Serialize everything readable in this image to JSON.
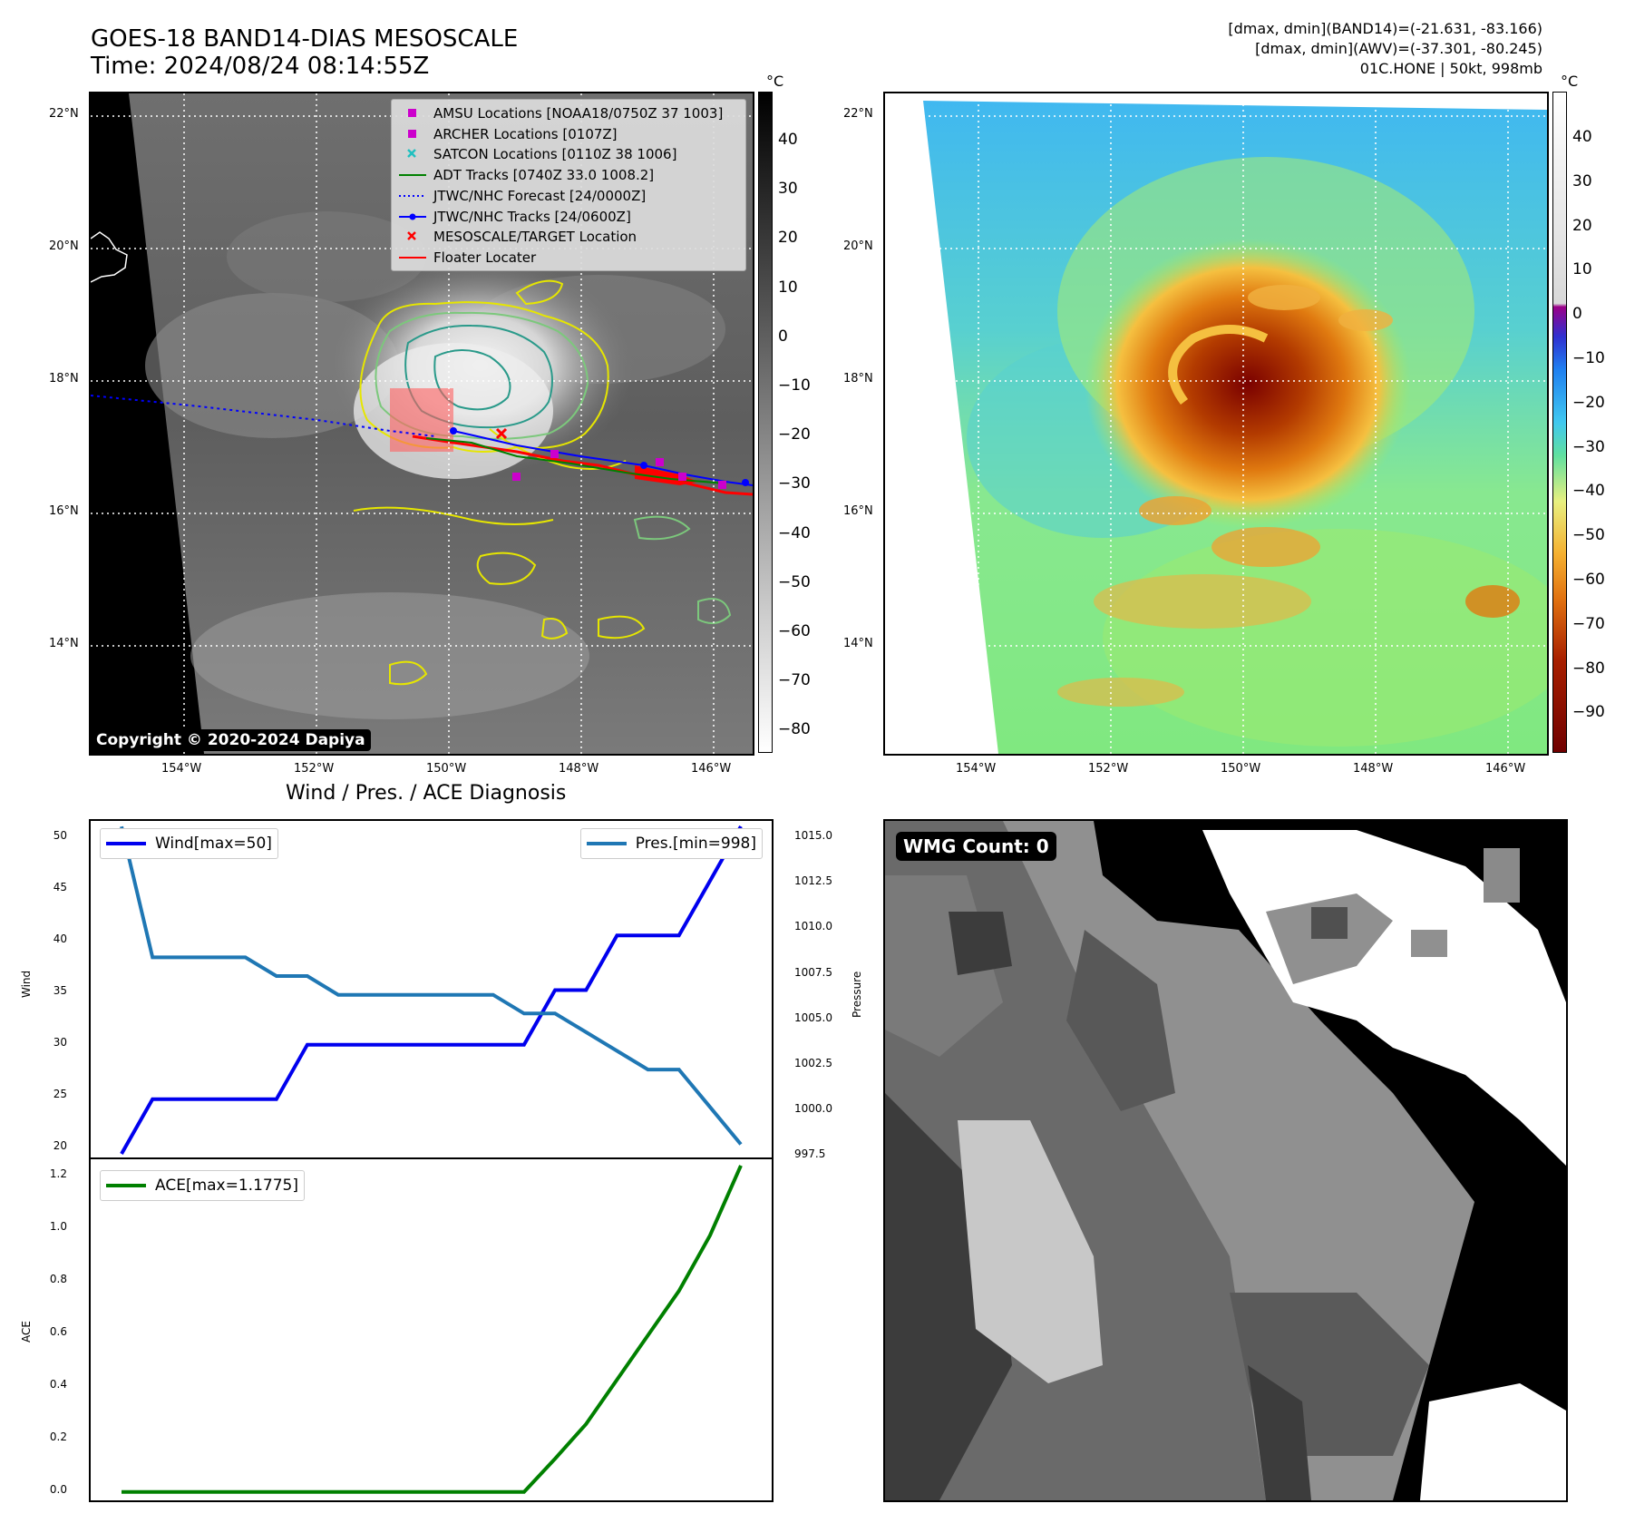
{
  "header": {
    "title_line1": "GOES-18 BAND14-DIAS MESOSCALE",
    "title_line2": "Time: 2024/08/24 08:14:55Z",
    "info_line1": "[dmax, dmin](BAND14)=(-21.631, -83.166)",
    "info_line2": "[dmax, dmin](AWV)=(-37.301, -80.245)",
    "info_line3": "01C.HONE | 50kt, 998mb"
  },
  "map_axes": {
    "lat_labels": [
      "22°N",
      "20°N",
      "18°N",
      "16°N",
      "14°N"
    ],
    "lon_labels": [
      "154°W",
      "152°W",
      "150°W",
      "148°W",
      "146°W"
    ]
  },
  "left_map": {
    "copyright": "Copyright © 2020-2024 Dapiya",
    "cbar_unit": "°C",
    "cbar_ticks": [
      "40",
      "30",
      "20",
      "10",
      "0",
      "−10",
      "−20",
      "−30",
      "−40",
      "−50",
      "−60",
      "−70",
      "−80"
    ],
    "legend": [
      {
        "label": "AMSU Locations [NOAA18/0750Z 37 1003]",
        "color": "#cc00cc",
        "symbol": "square"
      },
      {
        "label": "ARCHER Locations [0107Z]",
        "color": "#cc00cc",
        "symbol": "square"
      },
      {
        "label": "SATCON Locations [0110Z 38 1006]",
        "color": "#20c0c0",
        "symbol": "x"
      },
      {
        "label": "ADT Tracks [0740Z 33.0 1008.2]",
        "color": "#008000",
        "symbol": "line"
      },
      {
        "label": "JTWC/NHC Forecast [24/0000Z]",
        "color": "#0000ff",
        "symbol": "dotted"
      },
      {
        "label": "JTWC/NHC Tracks [24/0600Z]",
        "color": "#0000ff",
        "symbol": "line-dot"
      },
      {
        "label": "MESOSCALE/TARGET Location",
        "color": "#ff0000",
        "symbol": "x"
      },
      {
        "label": "Floater Locater",
        "color": "#ff0000",
        "symbol": "line"
      }
    ]
  },
  "right_map": {
    "cbar_unit": "°C",
    "cbar_ticks": [
      "40",
      "30",
      "20",
      "10",
      "0",
      "−10",
      "−20",
      "−30",
      "−40",
      "−50",
      "−60",
      "−70",
      "−80",
      "−90"
    ]
  },
  "diagnosis": {
    "title": "Wind / Pres. / ACE Diagnosis",
    "wind_label": "Wind",
    "pressure_label": "Pressure",
    "ace_label": "ACE",
    "wind_legend": "Wind[max=50]",
    "pres_legend": "Pres.[min=998]",
    "ace_legend": "ACE[max=1.1775]",
    "wind_ticks": [
      "50",
      "45",
      "40",
      "35",
      "30",
      "25",
      "20"
    ],
    "pres_ticks": [
      "1015.0",
      "1012.5",
      "1010.0",
      "1007.5",
      "1005.0",
      "1002.5",
      "1000.0",
      "997.5"
    ],
    "ace_ticks": [
      "1.2",
      "1.0",
      "0.8",
      "0.6",
      "0.4",
      "0.2",
      "0.0"
    ]
  },
  "wmg": {
    "count_label": "WMG Count: 0"
  },
  "chart_data": [
    {
      "type": "line",
      "title": "Wind / Pres. / ACE Diagnosis",
      "x": [
        0,
        1,
        2,
        3,
        4,
        5,
        6,
        7,
        8,
        9,
        10,
        11,
        12,
        13,
        14,
        15,
        16,
        17,
        18,
        19,
        20
      ],
      "series": [
        {
          "name": "Wind[max=50]",
          "color": "#0000ee",
          "axis": "left",
          "ylim": [
            19.5,
            50.5
          ],
          "values": [
            20,
            25,
            25,
            25,
            25,
            25,
            30,
            30,
            30,
            30,
            30,
            30,
            30,
            30,
            35,
            35,
            40,
            40,
            40,
            45,
            50
          ]
        },
        {
          "name": "Pres.[min=998]",
          "color": "#1f77b4",
          "axis": "right",
          "ylim": [
            997.2,
            1015.3
          ],
          "values": [
            1015,
            1008,
            1008,
            1008,
            1008,
            1007,
            1007,
            1006,
            1006,
            1006,
            1006,
            1006,
            1006,
            1005,
            1005,
            1004,
            1003,
            1002,
            1002,
            1000,
            998
          ]
        }
      ],
      "ylabel": "Wind",
      "y2label": "Pressure"
    },
    {
      "type": "line",
      "x": [
        0,
        1,
        2,
        3,
        4,
        5,
        6,
        7,
        8,
        9,
        10,
        11,
        12,
        13,
        14,
        15,
        16,
        17,
        18,
        19,
        20
      ],
      "series": [
        {
          "name": "ACE[max=1.1775]",
          "color": "#008000",
          "ylim": [
            -0.03,
            1.2
          ],
          "values": [
            0,
            0,
            0,
            0,
            0,
            0,
            0,
            0,
            0,
            0,
            0,
            0,
            0,
            0,
            0.12,
            0.245,
            0.405,
            0.565,
            0.725,
            0.925,
            1.1775
          ]
        }
      ],
      "ylabel": "ACE"
    }
  ]
}
